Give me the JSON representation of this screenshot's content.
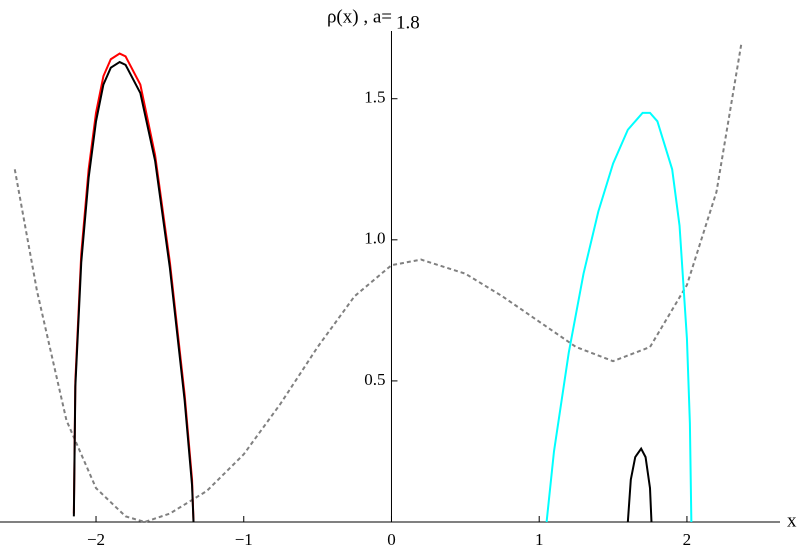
{
  "chart_data": {
    "type": "line",
    "title": "ρ(x) , a=",
    "parameter": "1.8",
    "x_label": "x",
    "xlim": [
      -2.65,
      2.63
    ],
    "ylim": [
      0,
      1.74
    ],
    "xticks": [
      {
        "value": -2,
        "label": "−2"
      },
      {
        "value": -1,
        "label": "−1"
      },
      0,
      1,
      2
    ],
    "yticks": [
      0.5,
      {
        "value": 1,
        "label": "1.0"
      },
      1.5
    ],
    "series": [
      {
        "color": "#808080",
        "dashed": true,
        "x": [
          -2.55,
          -2.4,
          -2.2,
          -2.0,
          -1.8,
          -1.67,
          -1.5,
          -1.25,
          -1.0,
          -0.75,
          -0.5,
          -0.25,
          0,
          0.2,
          0.5,
          0.75,
          1.0,
          1.25,
          1.5,
          1.75,
          2.0,
          2.2,
          2.37
        ],
        "values": [
          1.25,
          0.82,
          0.36,
          0.12,
          0.02,
          0.0,
          0.03,
          0.11,
          0.24,
          0.42,
          0.62,
          0.8,
          0.91,
          0.93,
          0.88,
          0.8,
          0.71,
          0.62,
          0.57,
          0.62,
          0.84,
          1.17,
          1.7
        ]
      },
      {
        "color": "#ff0000",
        "x": [
          -2.15,
          -2.14,
          -2.1,
          -2.05,
          -2.0,
          -1.95,
          -1.9,
          -1.84,
          -1.8,
          -1.7,
          -1.6,
          -1.5,
          -1.4,
          -1.35,
          -1.34
        ],
        "values": [
          0.03,
          0.5,
          0.95,
          1.25,
          1.45,
          1.58,
          1.64,
          1.66,
          1.65,
          1.55,
          1.3,
          0.92,
          0.45,
          0.15,
          0.0
        ]
      },
      {
        "color": "#000000",
        "x": [
          -2.15,
          -2.14,
          -2.1,
          -2.05,
          -2.0,
          -1.95,
          -1.9,
          -1.84,
          -1.8,
          -1.7,
          -1.6,
          -1.5,
          -1.4,
          -1.35,
          -1.34
        ],
        "values": [
          0.02,
          0.48,
          0.92,
          1.22,
          1.42,
          1.55,
          1.61,
          1.63,
          1.62,
          1.52,
          1.28,
          0.9,
          0.43,
          0.13,
          0.0
        ]
      },
      {
        "color": "#00ffff",
        "x": [
          1.05,
          1.1,
          1.2,
          1.3,
          1.4,
          1.5,
          1.6,
          1.7,
          1.75,
          1.8,
          1.9,
          1.95,
          2.0,
          2.02,
          2.03
        ],
        "values": [
          0.0,
          0.25,
          0.6,
          0.88,
          1.1,
          1.27,
          1.39,
          1.45,
          1.45,
          1.42,
          1.25,
          1.05,
          0.65,
          0.35,
          0.0
        ]
      },
      {
        "color": "#000000",
        "x": [
          1.6,
          1.62,
          1.65,
          1.69,
          1.72,
          1.75,
          1.76
        ],
        "values": [
          0.0,
          0.15,
          0.23,
          0.26,
          0.23,
          0.12,
          0.0
        ]
      }
    ]
  }
}
